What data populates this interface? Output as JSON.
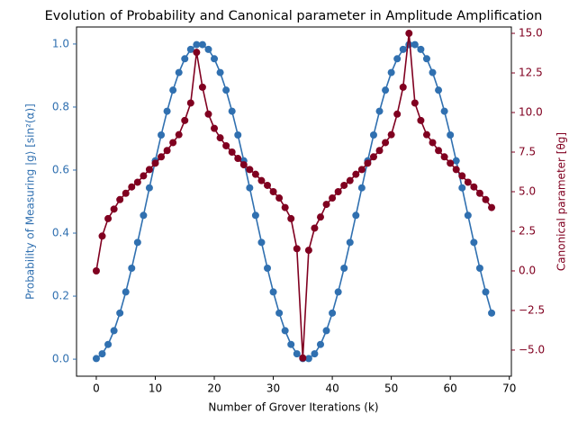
{
  "chart_data": {
    "type": "line",
    "title": "Evolution of Probability and Canonical parameter in Amplitude Amplification",
    "x_label": "Number of Grover Iterations (k)",
    "y_label": "Probability of Measuring |g⟩ [sin²(α)]",
    "y2_label": "Canonical parameter [θg]",
    "x": [
      0,
      1,
      2,
      3,
      4,
      5,
      6,
      7,
      8,
      9,
      10,
      11,
      12,
      13,
      14,
      15,
      16,
      17,
      18,
      19,
      20,
      21,
      22,
      23,
      24,
      25,
      26,
      27,
      28,
      29,
      30,
      31,
      32,
      33,
      34,
      35,
      36,
      37,
      38,
      39,
      40,
      41,
      42,
      43,
      44,
      45,
      46,
      47,
      48,
      49,
      50,
      51,
      52,
      53,
      54,
      55,
      56,
      57,
      58,
      59,
      60,
      61,
      62,
      63,
      64,
      65,
      66,
      67
    ],
    "xlim": [
      -3.35,
      70.35
    ],
    "xticks": [
      0,
      10,
      20,
      30,
      40,
      50,
      60,
      70
    ],
    "ylim": [
      -0.054,
      1.054
    ],
    "yticks": [
      {
        "value": 0,
        "label": "0.0"
      },
      0.2,
      0.4,
      0.6,
      0.8,
      {
        "value": 1,
        "label": "1.0"
      }
    ],
    "y2lim": [
      -6.65,
      15.4
    ],
    "y2ticks": [
      {
        "value": -5,
        "label": "−5.0"
      },
      {
        "value": -2.5,
        "label": "−2.5"
      },
      {
        "value": 0,
        "label": "0.0"
      },
      2.5,
      {
        "value": 5,
        "label": "5.0"
      },
      7.5,
      {
        "value": 10,
        "label": "10.0"
      },
      12.5,
      {
        "value": 15,
        "label": "15.0"
      }
    ],
    "series": [
      {
        "color": "#3070b0",
        "axis": "y",
        "values": [
          0.0019,
          0.017,
          0.0468,
          0.0904,
          0.1464,
          0.2133,
          0.2887,
          0.3706,
          0.4564,
          0.5436,
          0.6294,
          0.7113,
          0.7867,
          0.8536,
          0.9096,
          0.9532,
          0.983,
          0.9981,
          0.9981,
          0.983,
          0.9532,
          0.9096,
          0.8536,
          0.7867,
          0.7113,
          0.6294,
          0.5436,
          0.4564,
          0.3706,
          0.2887,
          0.2133,
          0.1464,
          0.0904,
          0.0468,
          0.017,
          0.0019,
          0.0019,
          0.017,
          0.0468,
          0.0904,
          0.1464,
          0.2133,
          0.2887,
          0.3706,
          0.4564,
          0.5436,
          0.6294,
          0.7113,
          0.7867,
          0.8536,
          0.9096,
          0.9532,
          0.983,
          0.9981,
          0.9981,
          0.983,
          0.9532,
          0.9096,
          0.8536,
          0.7867,
          0.7113,
          0.6294,
          0.5436,
          0.4564,
          0.3706,
          0.2887,
          0.2133,
          0.1464
        ]
      },
      {
        "color": "#800020",
        "axis": "y2",
        "values": [
          0,
          2.2,
          3.3,
          3.9,
          4.5,
          4.9,
          5.3,
          5.6,
          6.0,
          6.4,
          6.8,
          7.2,
          7.6,
          8.1,
          8.6,
          9.5,
          10.6,
          13.8,
          11.6,
          9.9,
          9.0,
          8.4,
          7.9,
          7.5,
          7.1,
          6.7,
          6.4,
          6.1,
          5.7,
          5.4,
          5.0,
          4.6,
          4.0,
          3.3,
          1.4,
          -5.5,
          1.3,
          2.7,
          3.4,
          4.2,
          4.6,
          5.0,
          5.4,
          5.7,
          6.1,
          6.4,
          6.8,
          7.2,
          7.6,
          8.1,
          8.6,
          9.9,
          11.6,
          15.0,
          10.6,
          9.5,
          8.6,
          8.1,
          7.6,
          7.2,
          6.8,
          6.4,
          6.0,
          5.6,
          5.3,
          4.9,
          4.5,
          4.0
        ]
      }
    ]
  }
}
